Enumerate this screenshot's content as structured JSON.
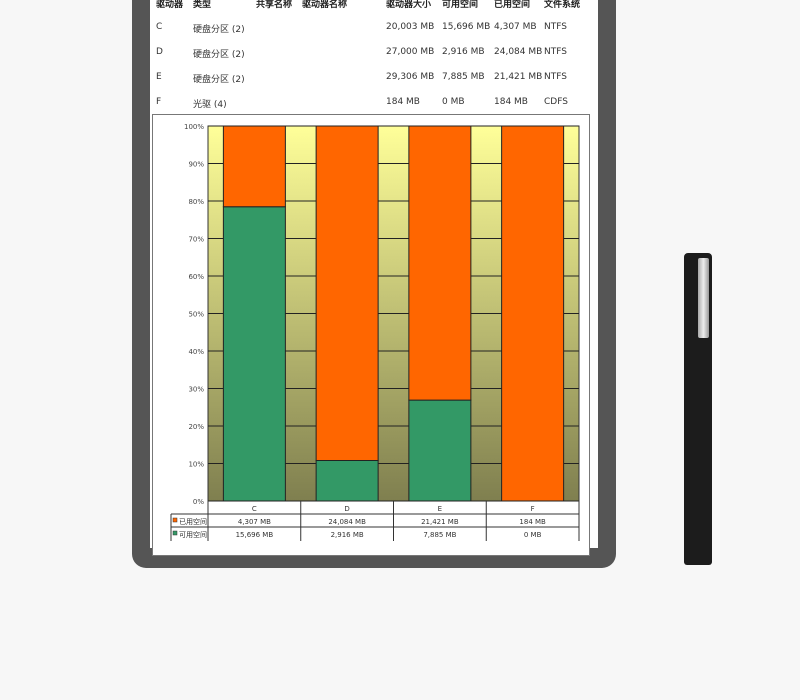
{
  "table": {
    "headers": [
      "驱动器",
      "类型",
      "共享名称",
      "驱动器名称",
      "驱动器大小",
      "可用空间",
      "已用空间",
      "文件系统"
    ],
    "rows": [
      [
        "C",
        "硬盘分区 (2)",
        "",
        "",
        "20,003 MB",
        "15,696 MB",
        "4,307 MB",
        "NTFS"
      ],
      [
        "D",
        "硬盘分区 (2)",
        "",
        "",
        "27,000 MB",
        "2,916 MB",
        "24,084 MB",
        "NTFS"
      ],
      [
        "E",
        "硬盘分区 (2)",
        "",
        "",
        "29,306 MB",
        "7,885 MB",
        "21,421 MB",
        "NTFS"
      ],
      [
        "F",
        "光驱 (4)",
        "",
        "",
        "184 MB",
        "0 MB",
        "184 MB",
        "CDFS"
      ]
    ]
  },
  "chart_data": {
    "type": "bar",
    "stacked": "100%",
    "categories": [
      "C",
      "D",
      "E",
      "F"
    ],
    "series": [
      {
        "name": "可用空间",
        "values": [
          15696,
          2916,
          7885,
          0
        ],
        "labels": [
          "15,696 MB",
          "2,916 MB",
          "7,885 MB",
          "0 MB"
        ],
        "color": "#339966"
      },
      {
        "name": "已用空间",
        "values": [
          4307,
          24084,
          21421,
          184
        ],
        "labels": [
          "4,307 MB",
          "24,084 MB",
          "21,421 MB",
          "184 MB"
        ],
        "color": "#ff6600"
      }
    ],
    "yticks": [
      "0%",
      "10%",
      "20%",
      "30%",
      "40%",
      "50%",
      "60%",
      "70%",
      "80%",
      "90%",
      "100%"
    ],
    "ylim": [
      0,
      100
    ],
    "grid": true,
    "data_table": true,
    "background_gradient": [
      "#ffff99",
      "#7f7f4f"
    ]
  }
}
